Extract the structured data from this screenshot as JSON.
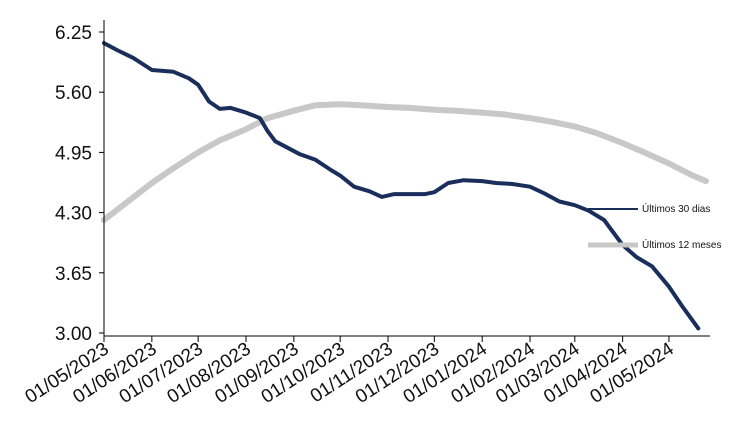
{
  "chart_data": {
    "type": "line",
    "title": "",
    "xlabel": "",
    "ylabel": "",
    "ylim": [
      3.0,
      6.25
    ],
    "y_ticks": [
      "6.25",
      "5.60",
      "4.95",
      "4.30",
      "3.65",
      "3.00"
    ],
    "x_ticks": [
      "01/05/2023",
      "01/06/2023",
      "01/07/2023",
      "01/08/2023",
      "01/09/2023",
      "01/10/2023",
      "01/11/2023",
      "01/12/2023",
      "01/01/2024",
      "01/02/2024",
      "01/03/2024",
      "01/04/2024",
      "01/05/2024"
    ],
    "x_range": [
      "2023-05-01",
      "2024-05-25"
    ],
    "legend_position": "right",
    "grid": false,
    "series": [
      {
        "name": "Últimos 30 dias",
        "color": "#1a2e5c",
        "x": [
          "2023-05-01",
          "2023-05-10",
          "2023-05-20",
          "2023-06-01",
          "2023-06-15",
          "2023-06-25",
          "2023-07-01",
          "2023-07-08",
          "2023-07-15",
          "2023-07-22",
          "2023-08-01",
          "2023-08-10",
          "2023-08-15",
          "2023-08-20",
          "2023-08-28",
          "2023-09-05",
          "2023-09-15",
          "2023-09-25",
          "2023-10-01",
          "2023-10-10",
          "2023-10-20",
          "2023-10-28",
          "2023-11-05",
          "2023-11-15",
          "2023-11-25",
          "2023-12-01",
          "2023-12-10",
          "2023-12-20",
          "2024-01-01",
          "2024-01-10",
          "2024-01-20",
          "2024-02-01",
          "2024-02-10",
          "2024-02-20",
          "2024-03-01",
          "2024-03-10",
          "2024-03-20",
          "2024-04-01",
          "2024-04-10",
          "2024-04-20",
          "2024-05-01",
          "2024-05-10",
          "2024-05-20"
        ],
        "values": [
          6.13,
          6.05,
          5.97,
          5.84,
          5.82,
          5.75,
          5.68,
          5.5,
          5.42,
          5.43,
          5.38,
          5.32,
          5.18,
          5.07,
          5.0,
          4.93,
          4.87,
          4.76,
          4.7,
          4.58,
          4.53,
          4.47,
          4.5,
          4.5,
          4.5,
          4.52,
          4.62,
          4.65,
          4.64,
          4.62,
          4.61,
          4.58,
          4.51,
          4.42,
          4.38,
          4.32,
          4.22,
          3.95,
          3.82,
          3.72,
          3.5,
          3.28,
          3.05
        ]
      },
      {
        "name": "Últimos 12 meses",
        "color": "#c8c8c8",
        "x": [
          "2023-05-01",
          "2023-05-15",
          "2023-06-01",
          "2023-06-15",
          "2023-07-01",
          "2023-07-15",
          "2023-08-01",
          "2023-08-15",
          "2023-09-01",
          "2023-09-15",
          "2023-10-01",
          "2023-10-15",
          "2023-11-01",
          "2023-11-15",
          "2023-12-01",
          "2023-12-15",
          "2024-01-01",
          "2024-01-15",
          "2024-02-01",
          "2024-02-15",
          "2024-03-01",
          "2024-03-15",
          "2024-04-01",
          "2024-04-15",
          "2024-05-01",
          "2024-05-15",
          "2024-05-25"
        ],
        "values": [
          4.22,
          4.4,
          4.62,
          4.78,
          4.95,
          5.08,
          5.2,
          5.32,
          5.4,
          5.46,
          5.47,
          5.46,
          5.44,
          5.43,
          5.41,
          5.4,
          5.38,
          5.36,
          5.32,
          5.28,
          5.23,
          5.16,
          5.05,
          4.95,
          4.83,
          4.71,
          4.64
        ]
      }
    ]
  }
}
